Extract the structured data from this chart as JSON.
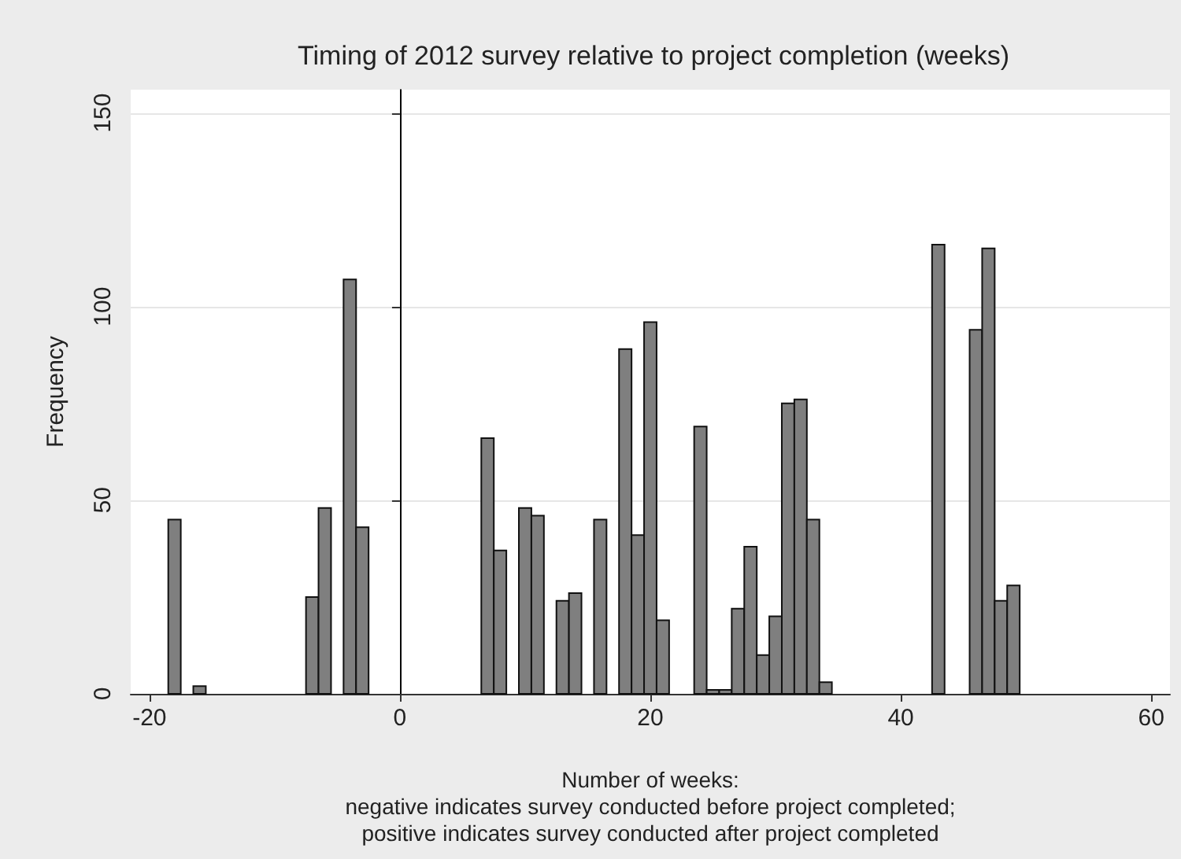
{
  "chart_data": {
    "type": "histogram",
    "title": "Timing of 2012 survey relative to project completion (weeks)",
    "xlabel": "Number of weeks:\nnegative indicates survey conducted before project completed;\npositive indicates survey conducted after project completed",
    "ylabel": "Frequency",
    "bins": [
      -18.5,
      -17.5,
      -16.5,
      -15.5,
      -14.5,
      -13.5,
      -12.5,
      -11.5,
      -10.5,
      -9.5,
      -8.5,
      -7.5,
      -6.5,
      -5.5,
      -4.5,
      -3.5,
      -2.5,
      -1.5,
      -0.5,
      0.5,
      1.5,
      2.5,
      3.5,
      4.5,
      5.5,
      6.5,
      7.5,
      8.5,
      9.5,
      10.5,
      11.5,
      12.5,
      13.5,
      14.5,
      15.5,
      16.5,
      17.5,
      18.5,
      19.5,
      20.5,
      21.5,
      22.5,
      23.5,
      24.5,
      25.5,
      26.5,
      27.5,
      28.5,
      29.5,
      30.5,
      31.5,
      32.5,
      33.5,
      34.5,
      35.5,
      36.5,
      37.5,
      38.5,
      39.5,
      40.5,
      41.5,
      42.5,
      43.5,
      44.5,
      45.5,
      46.5,
      47.5,
      48.5,
      49.5
    ],
    "values": [
      45,
      0,
      2,
      0,
      0,
      0,
      0,
      0,
      0,
      0,
      0,
      25,
      48,
      0,
      107,
      43,
      0,
      0,
      0,
      0,
      0,
      0,
      0,
      0,
      0,
      66,
      37,
      0,
      48,
      46,
      0,
      24,
      26,
      0,
      45,
      0,
      89,
      41,
      96,
      19,
      0,
      0,
      69,
      1,
      1,
      22,
      38,
      10,
      20,
      75,
      76,
      45,
      3,
      0,
      0,
      0,
      0,
      0,
      0,
      0,
      0,
      116,
      0,
      0,
      94,
      115,
      24,
      28
    ],
    "color": "#7f7f7f",
    "xlim": [
      -21.5,
      61.5
    ],
    "xticks": [
      -20,
      0,
      20,
      40,
      60
    ],
    "ylim": [
      0,
      156
    ],
    "yticks": [
      0,
      50,
      100,
      150
    ],
    "grid": "y",
    "ref_lines": [
      {
        "axis": "x",
        "value": 0,
        "color": "#000000"
      }
    ]
  }
}
